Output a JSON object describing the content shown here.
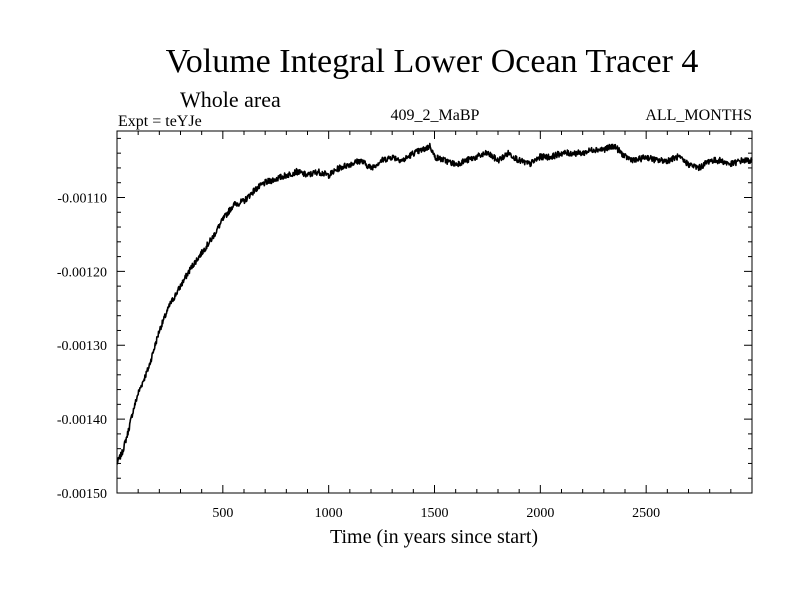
{
  "chart_data": {
    "type": "line",
    "title": "Volume Integral Lower Ocean Tracer 4",
    "subtitle": "Whole area",
    "expt_label": "Expt = teYJe",
    "run_label": "409_2_MaBP",
    "period_label": "ALL_MONTHS",
    "xlabel": "Time (in years since start)",
    "ylabel": "",
    "xlim": [
      0,
      3000
    ],
    "ylim": [
      -0.0015,
      -0.00101
    ],
    "x_ticks": [
      500,
      1000,
      1500,
      2000,
      2500
    ],
    "x_tick_labels": [
      "500",
      "1000",
      "1500",
      "2000",
      "2500"
    ],
    "y_ticks": [
      -0.0015,
      -0.0014,
      -0.0013,
      -0.0012,
      -0.0011
    ],
    "y_tick_labels": [
      "-0.00150",
      "-0.00140",
      "-0.00130",
      "-0.00120",
      "-0.00110"
    ],
    "grid": false,
    "series": [
      {
        "name": "Lower Ocean Tracer 4",
        "color": "#000000",
        "x": [
          0,
          25,
          50,
          75,
          100,
          150,
          200,
          250,
          300,
          350,
          400,
          450,
          500,
          550,
          600,
          650,
          700,
          750,
          800,
          850,
          900,
          950,
          1000,
          1050,
          1100,
          1150,
          1200,
          1250,
          1300,
          1350,
          1400,
          1450,
          1480,
          1500,
          1550,
          1600,
          1650,
          1700,
          1750,
          1800,
          1850,
          1900,
          1950,
          2000,
          2050,
          2100,
          2150,
          2200,
          2250,
          2300,
          2350,
          2400,
          2450,
          2500,
          2550,
          2600,
          2650,
          2700,
          2750,
          2800,
          2850,
          2900,
          2950,
          3000
        ],
        "values": [
          -0.00146,
          -0.001445,
          -0.00142,
          -0.00139,
          -0.001365,
          -0.00133,
          -0.00128,
          -0.001245,
          -0.00122,
          -0.001195,
          -0.001175,
          -0.001155,
          -0.00113,
          -0.00111,
          -0.001105,
          -0.00109,
          -0.00108,
          -0.001075,
          -0.00107,
          -0.001065,
          -0.00107,
          -0.001065,
          -0.00107,
          -0.00106,
          -0.001055,
          -0.00105,
          -0.00106,
          -0.00105,
          -0.001045,
          -0.00105,
          -0.00104,
          -0.001035,
          -0.00103,
          -0.001045,
          -0.00105,
          -0.001055,
          -0.00105,
          -0.001045,
          -0.00104,
          -0.00105,
          -0.00104,
          -0.00105,
          -0.001055,
          -0.001045,
          -0.001045,
          -0.00104,
          -0.00104,
          -0.00104,
          -0.001035,
          -0.001035,
          -0.00103,
          -0.001045,
          -0.00105,
          -0.001045,
          -0.00105,
          -0.00105,
          -0.001045,
          -0.001055,
          -0.00106,
          -0.00105,
          -0.00105,
          -0.001055,
          -0.00105,
          -0.00105
        ]
      }
    ]
  }
}
